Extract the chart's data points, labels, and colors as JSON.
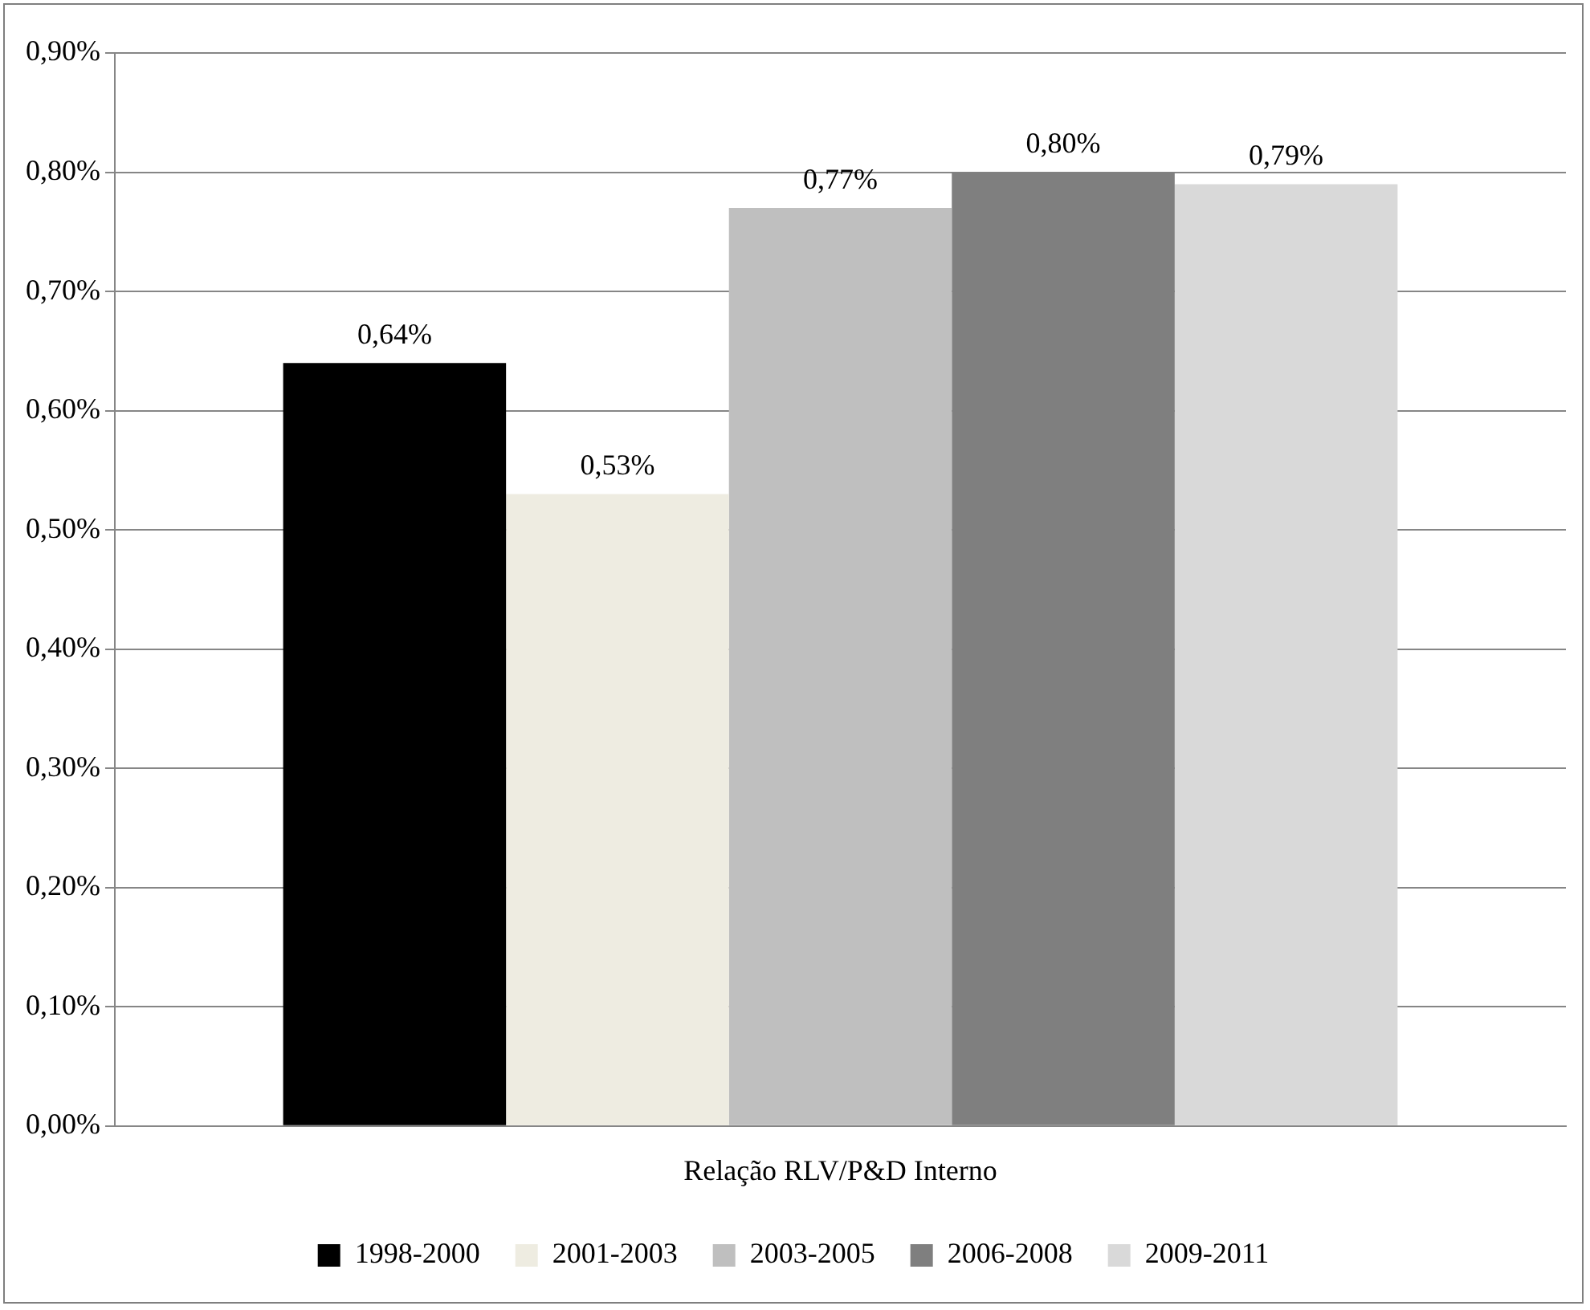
{
  "chart_data": {
    "type": "bar",
    "categories": [
      "Relação RLV/P&D Interno"
    ],
    "series": [
      {
        "name": "1998-2000",
        "color": "#000000",
        "values": [
          0.64
        ],
        "value_labels": [
          "0,64%"
        ]
      },
      {
        "name": "2001-2003",
        "color": "#eeece1",
        "values": [
          0.53
        ],
        "value_labels": [
          "0,53%"
        ]
      },
      {
        "name": "2003-2005",
        "color": "#bfbfbf",
        "values": [
          0.77
        ],
        "value_labels": [
          "0,77%"
        ]
      },
      {
        "name": "2006-2008",
        "color": "#7f7f7f",
        "values": [
          0.8
        ],
        "value_labels": [
          "0,80%"
        ]
      },
      {
        "name": "2009-2011",
        "color": "#d9d9d9",
        "values": [
          0.79
        ],
        "value_labels": [
          "0,79%"
        ]
      }
    ],
    "ylim": [
      0,
      0.9
    ],
    "yticks": [
      {
        "value": 0,
        "label": "0,00%"
      },
      {
        "value": 0.1,
        "label": "0,10%"
      },
      {
        "value": 0.2,
        "label": "0,20%"
      },
      {
        "value": 0.3,
        "label": "0,30%"
      },
      {
        "value": 0.4,
        "label": "0,40%"
      },
      {
        "value": 0.5,
        "label": "0,50%"
      },
      {
        "value": 0.6,
        "label": "0,60%"
      },
      {
        "value": 0.7,
        "label": "0,70%"
      },
      {
        "value": 0.8,
        "label": "0,80%"
      },
      {
        "value": 0.9,
        "label": "0,90%"
      }
    ],
    "grid": "y",
    "legend": "bottom"
  }
}
